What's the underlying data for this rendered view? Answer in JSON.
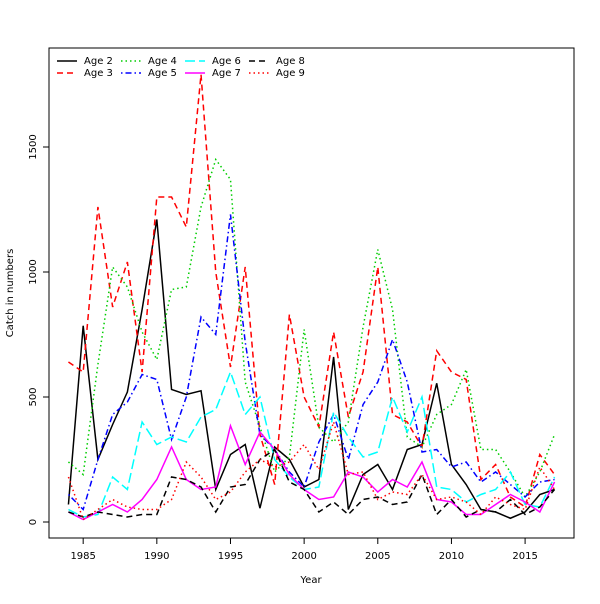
{
  "chart_data": {
    "type": "line",
    "xlabel": "Year",
    "ylabel": "Catch in numbers",
    "x": [
      1984,
      1985,
      1986,
      1987,
      1988,
      1989,
      1990,
      1991,
      1992,
      1993,
      1994,
      1995,
      1996,
      1997,
      1998,
      1999,
      2000,
      2001,
      2002,
      2003,
      2004,
      2005,
      2006,
      2007,
      2008,
      2009,
      2010,
      2011,
      2012,
      2013,
      2014,
      2015,
      2016,
      2017
    ],
    "xlim": [
      1982.68,
      2018.32
    ],
    "xticks": [
      1985,
      1990,
      1995,
      2000,
      2005,
      2010,
      2015
    ],
    "ylim": [
      -64,
      1896
    ],
    "yticks": [
      0,
      500,
      1000,
      1500
    ],
    "legend": "topleft",
    "series": [
      {
        "name": "Age 2",
        "color": "#000000",
        "dash": "solid",
        "values": [
          70,
          785,
          250,
          390,
          520,
          850,
          1210,
          530,
          510,
          525,
          130,
          270,
          310,
          55,
          300,
          250,
          140,
          170,
          660,
          50,
          190,
          230,
          130,
          290,
          310,
          555,
          230,
          150,
          50,
          40,
          15,
          40,
          110,
          130
        ]
      },
      {
        "name": "Age 3",
        "color": "#ff0000",
        "dash": "dashed",
        "values": [
          640,
          600,
          1260,
          860,
          1040,
          600,
          1300,
          1300,
          1180,
          1790,
          1000,
          620,
          1020,
          350,
          150,
          830,
          500,
          380,
          760,
          420,
          600,
          1020,
          430,
          400,
          300,
          685,
          600,
          570,
          170,
          230,
          100,
          60,
          270,
          190
        ]
      },
      {
        "name": "Age 4",
        "color": "#00cd00",
        "dash": "dotted",
        "values": [
          240,
          190,
          630,
          1020,
          940,
          760,
          650,
          930,
          940,
          1260,
          1450,
          1370,
          560,
          380,
          200,
          260,
          770,
          380,
          320,
          400,
          780,
          1090,
          850,
          340,
          300,
          430,
          470,
          610,
          290,
          290,
          200,
          100,
          200,
          350
        ]
      },
      {
        "name": "Age 5",
        "color": "#0000ff",
        "dash": "dotdash",
        "values": [
          110,
          50,
          250,
          430,
          480,
          590,
          570,
          330,
          500,
          820,
          750,
          1230,
          720,
          350,
          290,
          200,
          140,
          320,
          430,
          250,
          470,
          560,
          730,
          560,
          280,
          290,
          220,
          240,
          160,
          200,
          150,
          100,
          160,
          170
        ]
      },
      {
        "name": "Age 6",
        "color": "#00ffff",
        "dash": "longdash",
        "values": [
          50,
          20,
          30,
          180,
          130,
          400,
          310,
          340,
          320,
          420,
          450,
          600,
          430,
          500,
          250,
          180,
          130,
          140,
          440,
          340,
          260,
          280,
          500,
          360,
          500,
          140,
          130,
          80,
          110,
          130,
          200,
          70,
          60,
          180
        ]
      },
      {
        "name": "Age 7",
        "color": "#ff00ff",
        "dash": "solid",
        "values": [
          40,
          10,
          40,
          70,
          40,
          90,
          170,
          300,
          170,
          130,
          140,
          385,
          230,
          360,
          290,
          190,
          130,
          90,
          100,
          200,
          180,
          120,
          170,
          140,
          240,
          90,
          80,
          30,
          30,
          70,
          110,
          80,
          40,
          160
        ]
      },
      {
        "name": "Age 8",
        "color": "#000000",
        "dash": "dashed",
        "values": [
          40,
          20,
          40,
          30,
          20,
          30,
          30,
          180,
          170,
          140,
          40,
          140,
          150,
          250,
          290,
          160,
          130,
          40,
          80,
          30,
          90,
          100,
          70,
          80,
          190,
          30,
          90,
          20,
          50,
          40,
          90,
          30,
          60,
          130
        ]
      },
      {
        "name": "Age 9",
        "color": "#ff0000",
        "dash": "dotted",
        "values": [
          180,
          10,
          50,
          90,
          60,
          50,
          50,
          90,
          240,
          180,
          90,
          120,
          200,
          250,
          220,
          240,
          310,
          210,
          400,
          190,
          200,
          90,
          120,
          110,
          190,
          90,
          100,
          80,
          30,
          100,
          70,
          50,
          220,
          130
        ]
      }
    ]
  }
}
